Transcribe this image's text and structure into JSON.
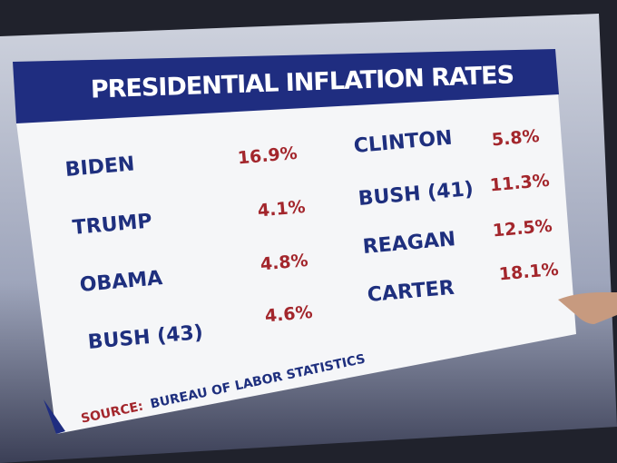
{
  "title": "PRESIDENTIAL INFLATION RATES",
  "table": {
    "left_column": [
      {
        "name": "BIDEN",
        "rate": "16.9%"
      },
      {
        "name": "TRUMP",
        "rate": "4.1%"
      },
      {
        "name": "OBAMA",
        "rate": "4.8%"
      },
      {
        "name": "BUSH (43)",
        "rate": "4.6%"
      }
    ],
    "right_column": [
      {
        "name": "CLINTON",
        "rate": "5.8%"
      },
      {
        "name": "BUSH (41)",
        "rate": "11.3%"
      },
      {
        "name": "REAGAN",
        "rate": "12.5%"
      },
      {
        "name": "CARTER",
        "rate": "18.1%"
      }
    ]
  },
  "source": {
    "label": "SOURCE:",
    "text": "BUREAU OF LABOR STATISTICS"
  }
}
